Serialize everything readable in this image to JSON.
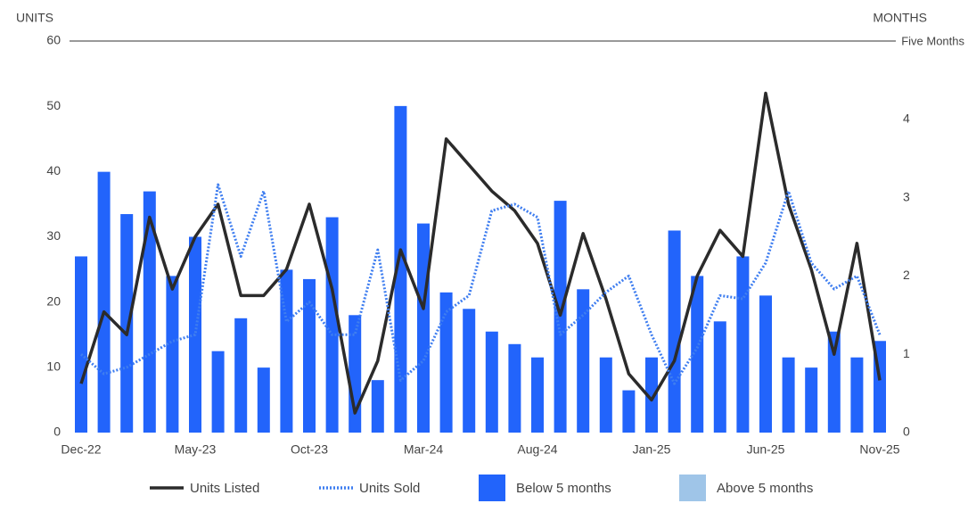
{
  "chart_data": {
    "type": "combo",
    "y_title": "UNITS",
    "y2_title": "MONTHS",
    "annotation": "Five Months",
    "categories": [
      "Dec-22",
      null,
      null,
      null,
      null,
      "May-23",
      null,
      null,
      null,
      null,
      "Oct-23",
      null,
      null,
      null,
      null,
      "Mar-24",
      null,
      null,
      null,
      null,
      "Aug-24",
      null,
      null,
      null,
      null,
      "Jan-25",
      null,
      null,
      null,
      null,
      "Jun-25",
      null,
      null,
      null,
      null,
      "Nov-25"
    ],
    "ylim": [
      0,
      60
    ],
    "yticks": [
      0,
      10,
      20,
      30,
      40,
      50,
      60
    ],
    "y2lim": [
      0,
      5
    ],
    "y2ticks": [
      0,
      1,
      2,
      3,
      4
    ],
    "series": [
      {
        "name": "Units Listed",
        "type": "line",
        "style": "solid",
        "color": "#2b2b2b",
        "values": [
          7.5,
          18.5,
          15,
          33,
          22,
          30,
          35,
          21,
          21,
          25,
          35,
          22,
          3,
          11,
          28,
          19,
          45,
          41,
          37,
          34,
          29,
          18,
          30.5,
          20.5,
          9,
          5,
          11,
          24,
          31,
          27,
          52,
          35,
          25,
          12,
          29,
          8
        ]
      },
      {
        "name": "Units Sold",
        "type": "line",
        "style": "dotted",
        "color": "#3f7ef0",
        "values": [
          12,
          9,
          10,
          12,
          14,
          15,
          38,
          27,
          37,
          17,
          20,
          15,
          15,
          28,
          8,
          11,
          18.5,
          21,
          34,
          35,
          33,
          15,
          18,
          21.5,
          24,
          15,
          7.5,
          13,
          21,
          20.5,
          26,
          37,
          26,
          22,
          24,
          15
        ]
      },
      {
        "name": "Below 5 months",
        "type": "bar",
        "axis": "y2",
        "color": "#2264fb",
        "values": [
          2.25,
          3.33,
          2.79,
          3.08,
          2.0,
          2.5,
          1.04,
          1.46,
          0.83,
          2.08,
          1.96,
          2.75,
          1.5,
          0.67,
          4.17,
          2.67,
          1.79,
          1.58,
          1.29,
          1.13,
          0.96,
          2.96,
          1.83,
          0.96,
          0.54,
          0.96,
          2.58,
          2.0,
          1.42,
          2.25,
          1.75,
          0.96,
          0.83,
          1.29,
          0.96,
          1.17
        ]
      },
      {
        "name": "Above 5 months",
        "type": "bar",
        "axis": "y2",
        "color": "#9fc5e8",
        "values": [
          null,
          null,
          null,
          null,
          null,
          null,
          null,
          null,
          null,
          null,
          null,
          null,
          null,
          null,
          null,
          null,
          null,
          null,
          null,
          null,
          null,
          null,
          null,
          null,
          null,
          null,
          null,
          null,
          null,
          null,
          null,
          null,
          null,
          null,
          null,
          null
        ]
      }
    ]
  }
}
